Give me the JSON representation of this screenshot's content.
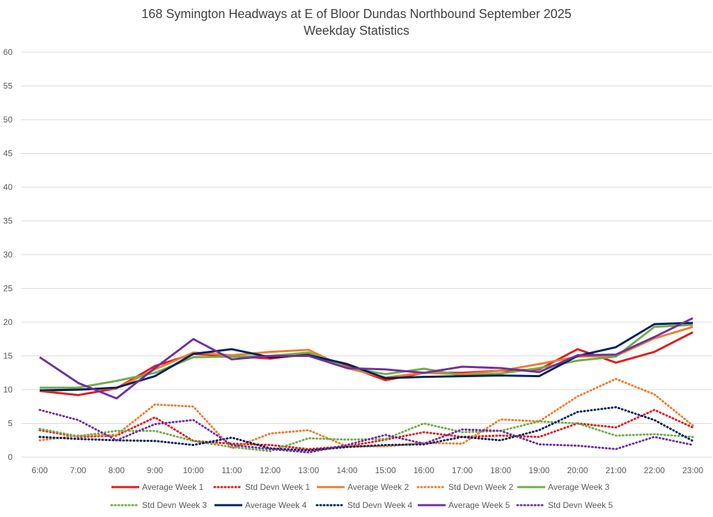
{
  "chart_data": {
    "type": "line",
    "title": "168 Symington Headways at E of Bloor Dundas Northbound September 2025",
    "subtitle": "Weekday Statistics",
    "xlabel": "",
    "ylabel": "",
    "ylim": [
      0,
      60
    ],
    "yticks": [
      "0",
      "5",
      "10",
      "15",
      "20",
      "25",
      "30",
      "35",
      "40",
      "45",
      "50",
      "55",
      "60"
    ],
    "grid": true,
    "legend_position": "bottom",
    "categories": [
      "6:00",
      "7:00",
      "8:00",
      "9:00",
      "10:00",
      "11:00",
      "12:00",
      "13:00",
      "14:00",
      "15:00",
      "16:00",
      "17:00",
      "18:00",
      "19:00",
      "20:00",
      "21:00",
      "22:00",
      "23:00"
    ],
    "series": [
      {
        "name": "Average Week 1",
        "color": "#e31a1c",
        "style": "solid",
        "values": [
          9.8,
          9.2,
          10.2,
          13.5,
          15.3,
          15.0,
          14.6,
          15.3,
          13.5,
          11.4,
          12.5,
          12.5,
          12.8,
          13.0,
          16.0,
          14.0,
          15.6,
          18.5
        ]
      },
      {
        "name": "Std Devn Week 1",
        "color": "#e31a1c",
        "style": "dotted",
        "values": [
          4.0,
          3.0,
          3.2,
          5.9,
          2.4,
          2.0,
          1.8,
          1.2,
          1.6,
          2.6,
          3.7,
          3.0,
          3.2,
          3.0,
          5.0,
          4.4,
          7.0,
          4.4
        ]
      },
      {
        "name": "Average Week 2",
        "color": "#ed7d31",
        "style": "solid",
        "values": [
          9.8,
          10.0,
          10.2,
          13.0,
          15.5,
          15.1,
          15.6,
          15.9,
          13.2,
          11.8,
          12.5,
          12.3,
          12.8,
          13.8,
          14.9,
          15.0,
          17.6,
          19.3
        ]
      },
      {
        "name": "Std Devn Week 2",
        "color": "#ed7d31",
        "style": "dotted",
        "values": [
          2.5,
          3.2,
          3.3,
          7.8,
          7.5,
          1.3,
          3.5,
          4.0,
          1.6,
          1.6,
          2.1,
          2.0,
          5.6,
          5.3,
          9.0,
          11.6,
          9.3,
          4.7
        ]
      },
      {
        "name": "Average Week 3",
        "color": "#70ad47",
        "style": "solid",
        "values": [
          10.3,
          10.3,
          11.3,
          12.5,
          14.8,
          14.9,
          15.0,
          15.5,
          13.3,
          12.3,
          13.1,
          12.1,
          12.4,
          13.2,
          14.3,
          14.9,
          19.3,
          19.6
        ]
      },
      {
        "name": "Std Devn Week 3",
        "color": "#70ad47",
        "style": "dotted",
        "values": [
          4.2,
          3.1,
          3.9,
          3.9,
          2.4,
          1.5,
          0.9,
          2.8,
          2.6,
          2.7,
          5.0,
          3.7,
          3.9,
          5.3,
          5.0,
          3.2,
          3.4,
          3.0
        ]
      },
      {
        "name": "Average Week 4",
        "color": "#002060",
        "style": "solid",
        "values": [
          9.9,
          10.0,
          10.3,
          12.0,
          15.3,
          16.0,
          14.8,
          15.1,
          13.8,
          11.7,
          11.9,
          12.0,
          12.1,
          12.0,
          15.0,
          16.3,
          19.7,
          19.9
        ]
      },
      {
        "name": "Std Devn Week 4",
        "color": "#002060",
        "style": "dotted",
        "values": [
          3.0,
          2.7,
          2.5,
          2.4,
          1.8,
          2.9,
          1.3,
          1.0,
          1.5,
          1.8,
          1.9,
          3.0,
          2.5,
          4.0,
          6.7,
          7.4,
          5.5,
          2.4
        ]
      },
      {
        "name": "Average Week 5",
        "color": "#7030a0",
        "style": "solid",
        "values": [
          14.8,
          11.0,
          8.7,
          13.2,
          17.5,
          14.5,
          15.0,
          15.0,
          13.2,
          13.0,
          12.5,
          13.4,
          13.2,
          12.6,
          15.1,
          15.2,
          17.8,
          20.6
        ]
      },
      {
        "name": "Std Devn Week 5",
        "color": "#7030a0",
        "style": "dotted",
        "values": [
          7.0,
          5.5,
          2.5,
          4.9,
          5.5,
          1.8,
          1.2,
          0.7,
          1.8,
          3.3,
          2.0,
          4.1,
          3.9,
          1.9,
          1.7,
          1.2,
          3.0,
          1.8
        ]
      }
    ]
  }
}
